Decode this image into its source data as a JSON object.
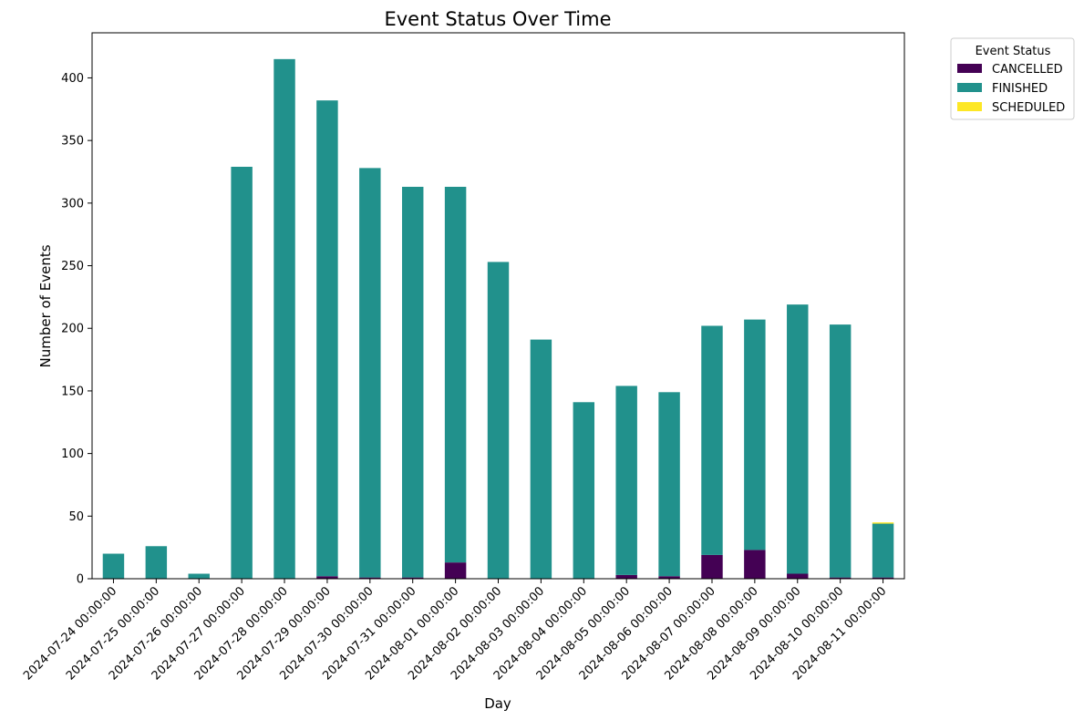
{
  "chart_data": {
    "type": "bar",
    "stacked": true,
    "title": "Event Status Over Time",
    "xlabel": "Day",
    "ylabel": "Number of Events",
    "ylim": [
      0,
      436
    ],
    "yticks": [
      0,
      50,
      100,
      150,
      200,
      250,
      300,
      350,
      400
    ],
    "grid": false,
    "legend": {
      "title": "Event Status",
      "placement": "outside-top-right"
    },
    "categories": [
      "2024-07-24 00:00:00",
      "2024-07-25 00:00:00",
      "2024-07-26 00:00:00",
      "2024-07-27 00:00:00",
      "2024-07-28 00:00:00",
      "2024-07-29 00:00:00",
      "2024-07-30 00:00:00",
      "2024-07-31 00:00:00",
      "2024-08-01 00:00:00",
      "2024-08-02 00:00:00",
      "2024-08-03 00:00:00",
      "2024-08-04 00:00:00",
      "2024-08-05 00:00:00",
      "2024-08-06 00:00:00",
      "2024-08-07 00:00:00",
      "2024-08-08 00:00:00",
      "2024-08-09 00:00:00",
      "2024-08-10 00:00:00",
      "2024-08-11 00:00:00"
    ],
    "series": [
      {
        "name": "CANCELLED",
        "color": "#440154",
        "values": [
          0,
          0,
          0,
          0,
          0,
          2,
          1,
          1,
          13,
          0,
          0,
          0,
          3,
          2,
          19,
          23,
          4,
          1,
          1
        ]
      },
      {
        "name": "FINISHED",
        "color": "#21918c",
        "values": [
          20,
          26,
          4,
          329,
          415,
          380,
          327,
          312,
          300,
          253,
          191,
          141,
          151,
          147,
          183,
          184,
          215,
          202,
          43
        ]
      },
      {
        "name": "SCHEDULED",
        "color": "#fde725",
        "values": [
          0,
          0,
          0,
          0,
          0,
          0,
          0,
          0,
          0,
          0,
          0,
          0,
          0,
          0,
          0,
          0,
          0,
          0,
          1
        ]
      }
    ]
  }
}
